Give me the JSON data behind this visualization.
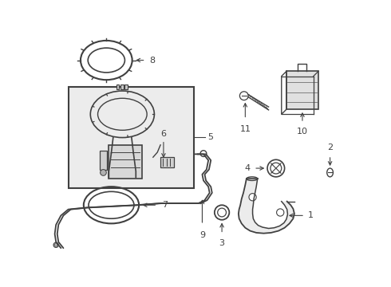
{
  "background_color": "#ffffff",
  "line_color": "#404040",
  "label_color": "#000000",
  "fig_w": 4.9,
  "fig_h": 3.6,
  "dpi": 100
}
